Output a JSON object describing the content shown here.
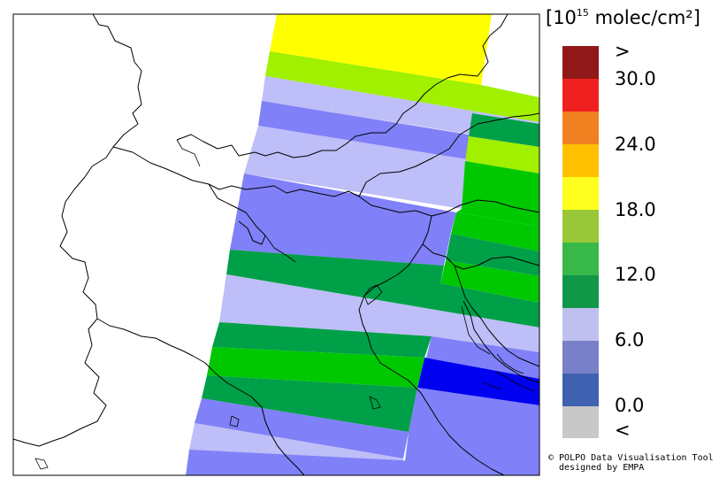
{
  "colorbar": {
    "title_prefix": "[10",
    "title_exp": "15",
    "title_suffix": " molec/cm²]",
    "bins": [
      {
        "color": "#c8c8c8"
      },
      {
        "color": "#4060b0"
      },
      {
        "color": "#7880c8"
      },
      {
        "color": "#c0c0f0"
      },
      {
        "color": "#109848"
      },
      {
        "color": "#38b848"
      },
      {
        "color": "#98c838"
      },
      {
        "color": "#ffff20"
      },
      {
        "color": "#ffc000"
      },
      {
        "color": "#f08020"
      },
      {
        "color": "#f02020"
      },
      {
        "color": "#901818"
      }
    ],
    "labels": [
      "<",
      "0.0",
      "6.0",
      "12.0",
      "18.0",
      "24.0",
      "30.0",
      ">"
    ]
  },
  "credit": {
    "line1": "© POLPO Data Visualisation Tool",
    "line2": "designed by EMPA"
  },
  "map": {
    "pixel_colors": {
      "yellow": "#ffff00",
      "yellowgreen": "#a0f000",
      "lavender": "#bebef8",
      "periwinkle": "#8080f8",
      "darkgreen": "#00a048",
      "green": "#00c800",
      "blue": "#0000f0"
    }
  }
}
